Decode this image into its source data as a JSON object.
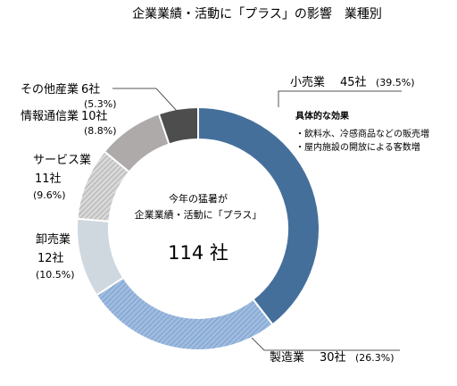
{
  "title": "企業業績・活動に「プラス」の影響　業種別",
  "center": {
    "line1": "今年の猛暑が",
    "line2": "企業業績・活動に「プラス」",
    "total": "114 社"
  },
  "annotation": {
    "heading": "具体的な効果",
    "items": [
      "・飲料水、冷感商品などの販売増",
      "・屋内施設の開放による客数増"
    ]
  },
  "colors": {
    "retail": "#456f9b",
    "manufacturing": "#8fb1d6",
    "wholesale": "#cfd8de",
    "service": "#c7c7c7",
    "it": "#aeaaaa",
    "other": "#4d4d4d"
  },
  "chart_data": {
    "type": "pie",
    "donut": true,
    "unit": "社",
    "slices": [
      {
        "key": "retail",
        "label": "小売業",
        "count": 45,
        "count_text": "45社",
        "pct": 39.5,
        "pct_text": "(39.5%)"
      },
      {
        "key": "manufacturing",
        "label": "製造業",
        "count": 30,
        "count_text": "30社",
        "pct": 26.3,
        "pct_text": "(26.3%)"
      },
      {
        "key": "wholesale",
        "label": "卸売業",
        "count": 12,
        "count_text": "12社",
        "pct": 10.5,
        "pct_text": "(10.5%)"
      },
      {
        "key": "service",
        "label": "サービス業",
        "count": 11,
        "count_text": "11社",
        "pct": 9.6,
        "pct_text": "(9.6%)"
      },
      {
        "key": "it",
        "label": "情報通信業",
        "count": 10,
        "count_text": "10社",
        "pct": 8.8,
        "pct_text": "(8.8%)"
      },
      {
        "key": "other",
        "label": "その他産業",
        "count": 6,
        "count_text": "6社",
        "pct": 5.3,
        "pct_text": "(5.3%)"
      }
    ]
  }
}
